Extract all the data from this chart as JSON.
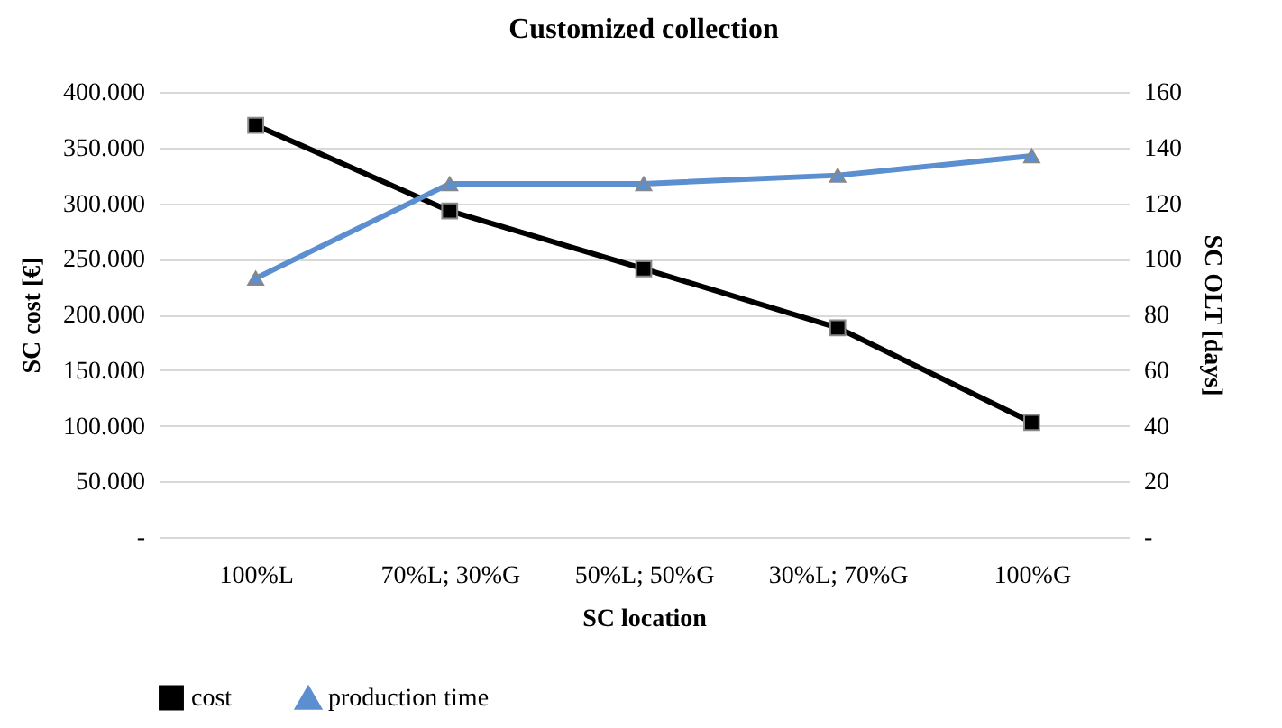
{
  "chart_data": {
    "type": "line",
    "title": "Customized collection",
    "xlabel": "SC location",
    "ylabel": "SC cost [€]",
    "y2label": "SC OLT  [days]",
    "categories": [
      "100%L",
      "70%L; 30%G",
      "50%L; 50%G",
      "30%L; 70%G",
      "100%G"
    ],
    "series": [
      {
        "name": "cost",
        "color": "#000000",
        "marker": "square",
        "values": [
          370000,
          293000,
          241000,
          188000,
          103000
        ]
      },
      {
        "name": "production time",
        "color": "#5b8fd0",
        "marker": "triangle",
        "axis": "y2",
        "values": [
          93,
          127,
          127,
          130,
          137
        ]
      }
    ],
    "ylim": [
      0,
      400000
    ],
    "yticks": [
      {
        "value": 0,
        "label": "-"
      },
      {
        "value": 50000,
        "label": "50.000"
      },
      {
        "value": 100000,
        "label": "100.000"
      },
      {
        "value": 150000,
        "label": "150.000"
      },
      {
        "value": 200000,
        "label": "200.000"
      },
      {
        "value": 250000,
        "label": "250.000"
      },
      {
        "value": 300000,
        "label": "300.000"
      },
      {
        "value": 350000,
        "label": "350.000"
      },
      {
        "value": 400000,
        "label": "400.000"
      }
    ],
    "y2lim": [
      0,
      160
    ],
    "y2ticks": [
      {
        "value": 0,
        "label": "-"
      },
      20,
      40,
      60,
      80,
      100,
      120,
      140,
      160
    ],
    "grid": "y",
    "legend": "bottom"
  }
}
